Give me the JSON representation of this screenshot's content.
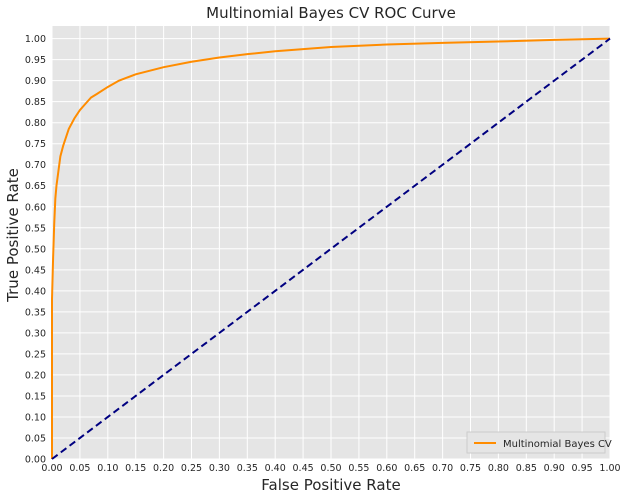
{
  "chart_data": {
    "type": "line",
    "title": "Multinomial Bayes CV ROC Curve",
    "xlabel": "False Positive Rate",
    "ylabel": "True Positive Rate",
    "xlim": [
      0,
      1
    ],
    "ylim": [
      0,
      1.03
    ],
    "x_ticks": [
      "0.00",
      "0.05",
      "0.10",
      "0.15",
      "0.20",
      "0.25",
      "0.30",
      "0.35",
      "0.40",
      "0.45",
      "0.50",
      "0.55",
      "0.60",
      "0.65",
      "0.70",
      "0.75",
      "0.80",
      "0.85",
      "0.90",
      "0.95",
      "1.00"
    ],
    "y_ticks": [
      "0.00",
      "0.05",
      "0.10",
      "0.15",
      "0.20",
      "0.25",
      "0.30",
      "0.35",
      "0.40",
      "0.45",
      "0.50",
      "0.55",
      "0.60",
      "0.65",
      "0.70",
      "0.75",
      "0.80",
      "0.85",
      "0.90",
      "0.95",
      "1.00"
    ],
    "grid": true,
    "legend_position": "lower-right",
    "series": [
      {
        "name": "Multinomial Bayes CV",
        "color": "#ff8c00",
        "style": "solid",
        "x": [
          0,
          0,
          0.002,
          0.004,
          0.006,
          0.008,
          0.01,
          0.015,
          0.02,
          0.025,
          0.03,
          0.04,
          0.05,
          0.06,
          0.07,
          0.08,
          0.1,
          0.12,
          0.15,
          0.2,
          0.25,
          0.3,
          0.35,
          0.4,
          0.45,
          0.5,
          0.6,
          0.7,
          0.8,
          0.9,
          1.0
        ],
        "y": [
          0,
          0.38,
          0.48,
          0.56,
          0.62,
          0.65,
          0.67,
          0.72,
          0.745,
          0.765,
          0.785,
          0.81,
          0.83,
          0.845,
          0.86,
          0.868,
          0.885,
          0.9,
          0.915,
          0.932,
          0.945,
          0.955,
          0.963,
          0.97,
          0.975,
          0.98,
          0.986,
          0.99,
          0.993,
          0.997,
          1.0
        ]
      },
      {
        "color": "#000080",
        "style": "dashed",
        "x": [
          0,
          1
        ],
        "y": [
          0,
          1
        ]
      }
    ]
  }
}
